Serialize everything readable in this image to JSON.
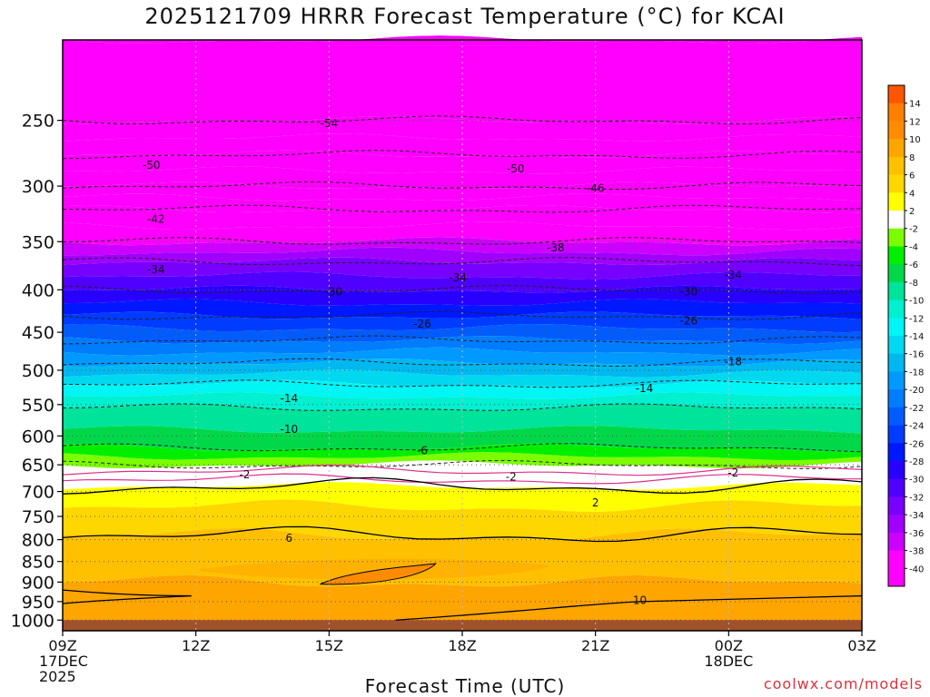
{
  "title": "2025121709 HRRR Forecast Temperature (°C) for KCAI",
  "credit": "coolwx.com/models",
  "chart_data": {
    "type": "heatmap",
    "title": "2025121709 HRRR Forecast Temperature (°C) for KCAI",
    "xlabel": "Forecast Time (UTC)",
    "ylabel": "",
    "x_ticks": [
      {
        "hour": 0,
        "lines": [
          "09Z",
          "17DEC",
          "2025"
        ]
      },
      {
        "hour": 3,
        "lines": [
          "12Z"
        ]
      },
      {
        "hour": 6,
        "lines": [
          "15Z"
        ]
      },
      {
        "hour": 9,
        "lines": [
          "18Z"
        ]
      },
      {
        "hour": 12,
        "lines": [
          "21Z"
        ]
      },
      {
        "hour": 15,
        "lines": [
          "00Z",
          "18DEC"
        ]
      },
      {
        "hour": 18,
        "lines": [
          "03Z"
        ]
      }
    ],
    "xlim_hours": [
      0,
      18
    ],
    "y_ticks_hpa": [
      250,
      300,
      350,
      400,
      450,
      500,
      550,
      600,
      650,
      700,
      750,
      800,
      850,
      900,
      950,
      1000
    ],
    "ylim_hpa": [
      200,
      1030
    ],
    "surface_hpa": 1000,
    "colorbar_levels": [
      14,
      12,
      10,
      8,
      6,
      4,
      2,
      -2,
      -4,
      -6,
      -8,
      -10,
      -12,
      -14,
      -16,
      -18,
      -20,
      -22,
      -24,
      -26,
      -28,
      -30,
      -32,
      -34,
      -36,
      -38,
      -40
    ],
    "temperature_profile": [
      {
        "p": 200,
        "t": -56
      },
      {
        "p": 250,
        "t": -54
      },
      {
        "p": 275,
        "t": -50
      },
      {
        "p": 300,
        "t": -46
      },
      {
        "p": 320,
        "t": -42
      },
      {
        "p": 350,
        "t": -38
      },
      {
        "p": 370,
        "t": -34
      },
      {
        "p": 400,
        "t": -30
      },
      {
        "p": 430,
        "t": -26
      },
      {
        "p": 460,
        "t": -22
      },
      {
        "p": 490,
        "t": -18
      },
      {
        "p": 520,
        "t": -14
      },
      {
        "p": 555,
        "t": -10
      },
      {
        "p": 590,
        "t": -8
      },
      {
        "p": 620,
        "t": -6
      },
      {
        "p": 650,
        "t": -2
      },
      {
        "p": 665,
        "t": 0
      },
      {
        "p": 690,
        "t": 2
      },
      {
        "p": 730,
        "t": 4
      },
      {
        "p": 790,
        "t": 6
      },
      {
        "p": 850,
        "t": 7
      },
      {
        "p": 900,
        "t": 8
      },
      {
        "p": 940,
        "t": 9
      },
      {
        "p": 1000,
        "t": 9
      }
    ],
    "contour_labels": [
      {
        "hour": 6.0,
        "p": 252,
        "v": "-54"
      },
      {
        "hour": 2.0,
        "p": 283,
        "v": "-50"
      },
      {
        "hour": 10.2,
        "p": 286,
        "v": "-50"
      },
      {
        "hour": 12.0,
        "p": 302,
        "v": "-46"
      },
      {
        "hour": 2.1,
        "p": 329,
        "v": "-42"
      },
      {
        "hour": 11.1,
        "p": 356,
        "v": "-38"
      },
      {
        "hour": 2.1,
        "p": 378,
        "v": "-34"
      },
      {
        "hour": 8.9,
        "p": 387,
        "v": "-34"
      },
      {
        "hour": 15.1,
        "p": 384,
        "v": "-34"
      },
      {
        "hour": 6.1,
        "p": 402,
        "v": "-30"
      },
      {
        "hour": 14.1,
        "p": 402,
        "v": "-30"
      },
      {
        "hour": 8.1,
        "p": 440,
        "v": "-26"
      },
      {
        "hour": 14.1,
        "p": 436,
        "v": "-26"
      },
      {
        "hour": 15.1,
        "p": 488,
        "v": "-18"
      },
      {
        "hour": 5.1,
        "p": 541,
        "v": "-14"
      },
      {
        "hour": 13.1,
        "p": 526,
        "v": "-14"
      },
      {
        "hour": 5.1,
        "p": 589,
        "v": "-10"
      },
      {
        "hour": 8.1,
        "p": 625,
        "v": "-6"
      },
      {
        "hour": 4.1,
        "p": 668,
        "v": "-2"
      },
      {
        "hour": 10.1,
        "p": 672,
        "v": "-2"
      },
      {
        "hour": 15.1,
        "p": 665,
        "v": "-2"
      },
      {
        "hour": 12.0,
        "p": 722,
        "v": "2"
      },
      {
        "hour": 5.1,
        "p": 797,
        "v": "6"
      },
      {
        "hour": 13.0,
        "p": 947,
        "v": "10"
      }
    ]
  }
}
